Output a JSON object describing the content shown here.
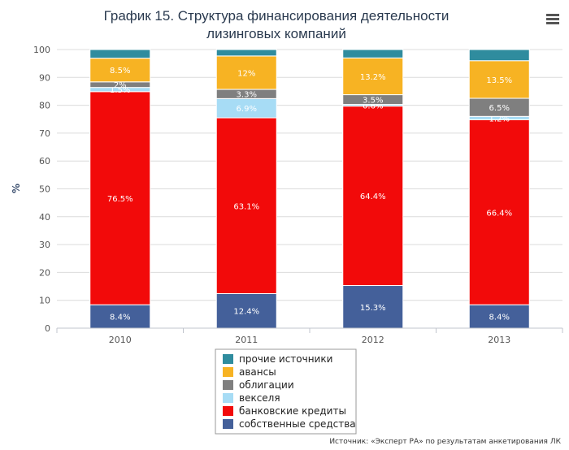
{
  "chart_data": {
    "type": "bar",
    "stacked": true,
    "title": [
      "График 15. Структура финансирования деятельности",
      "лизинговых компаний"
    ],
    "ylabel": "%",
    "ylim": [
      0,
      100
    ],
    "yticks": [
      0,
      10,
      20,
      30,
      40,
      50,
      60,
      70,
      80,
      90,
      100
    ],
    "categories": [
      "2010",
      "2011",
      "2012",
      "2013"
    ],
    "series": [
      {
        "name": "собственные средства",
        "color": "#44609a",
        "values": [
          8.4,
          12.4,
          15.3,
          8.4
        ],
        "labels": [
          "8.4%",
          "12.4%",
          "15.3%",
          "8.4%"
        ]
      },
      {
        "name": "банковские кредиты",
        "color": "#f20a0a",
        "values": [
          76.5,
          63.1,
          64.4,
          66.4
        ],
        "labels": [
          "76.5%",
          "63.1%",
          "64.4%",
          "66.4%"
        ]
      },
      {
        "name": "векселя",
        "color": "#a7dcf5",
        "values": [
          1.5,
          6.9,
          0.6,
          1.2
        ],
        "labels": [
          "1.5%",
          "6.9%",
          "0.6%",
          "1.2%"
        ]
      },
      {
        "name": "облигации",
        "color": "#7f7f7f",
        "values": [
          2,
          3.3,
          3.5,
          6.5
        ],
        "labels": [
          "2%",
          "3.3%",
          "3.5%",
          "6.5%"
        ]
      },
      {
        "name": "авансы",
        "color": "#f7b323",
        "values": [
          8.5,
          12,
          13.2,
          13.5
        ],
        "labels": [
          "8.5%",
          "12%",
          "13.2%",
          "13.5%"
        ]
      },
      {
        "name": "прочие источники",
        "color": "#2f8c9e",
        "values": [
          3.1,
          2.3,
          3,
          4
        ],
        "labels": [
          "",
          "",
          "",
          ""
        ]
      }
    ],
    "legend_order": [
      5,
      4,
      3,
      2,
      1,
      0
    ],
    "legend_position": "bottom-center"
  },
  "menu_icon": "hamburger-menu-icon",
  "source_note": "Источник: «Эксперт РА» по результатам анкетирования ЛК"
}
